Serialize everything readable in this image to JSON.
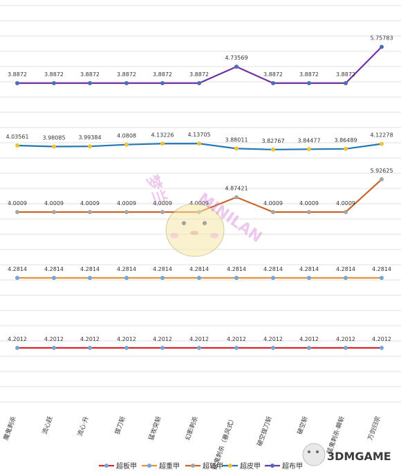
{
  "chart_data": {
    "type": "line",
    "categories": [
      "魔鬼刺杀",
      "流心跃",
      "流心·升",
      "拔刀斩",
      "猛攻突斩",
      "幻影刺杀",
      "猛鬼刺杀（暴风式）",
      "破空拔刀斩",
      "破空斩",
      "猛鬼刺杀·瞬斩",
      "万剑归宗"
    ],
    "series": [
      {
        "name": "超板甲",
        "color": "#d62728",
        "marker": "#6fa8dc",
        "values": [
          4.2012,
          4.2012,
          4.2012,
          4.2012,
          4.2012,
          4.2012,
          4.2012,
          4.2012,
          4.2012,
          4.2012,
          4.2012
        ],
        "labels": [
          "4.2012",
          "4.2012",
          "4.2012",
          "4.2012",
          "4.2012",
          "4.2012",
          "4.2012",
          "4.2012",
          "4.2012",
          "4.2012",
          "4.2012"
        ]
      },
      {
        "name": "超重甲",
        "color": "#e69138",
        "marker": "#6fa8dc",
        "values": [
          4.2814,
          4.2814,
          4.2814,
          4.2814,
          4.2814,
          4.2814,
          4.2814,
          4.2814,
          4.2814,
          4.2814,
          4.2814
        ],
        "labels": [
          "4.2814",
          "4.2814",
          "4.2814",
          "4.2814",
          "4.2814",
          "4.2814",
          "4.2814",
          "4.2814",
          "4.2814",
          "4.2814",
          "4.2814"
        ]
      },
      {
        "name": "超轻甲",
        "color": "#c8642a",
        "marker": "#a5a5a5",
        "values": [
          4.0009,
          4.0009,
          4.0009,
          4.0009,
          4.0009,
          4.0009,
          4.87421,
          4.0009,
          4.0009,
          4.0009,
          5.92625
        ],
        "labels": [
          "4.0009",
          "4.0009",
          "4.0009",
          "4.0009",
          "4.0009",
          "4.0009",
          "4.87421",
          "4.0009",
          "4.0009",
          "4.0009",
          "5.92625"
        ]
      },
      {
        "name": "超皮甲",
        "color": "#1f77b4",
        "marker": "#f1c232",
        "values": [
          4.03561,
          3.98085,
          3.99384,
          4.0808,
          4.13226,
          4.13705,
          3.88011,
          3.82767,
          3.84477,
          3.86489,
          4.12278
        ],
        "labels": [
          "4.03561",
          "3.98085",
          "3.99384",
          "4.0808",
          "4.13226",
          "4.13705",
          "3.88011",
          "3.82767",
          "3.84477",
          "3.86489",
          "4.12278"
        ]
      },
      {
        "name": "超布甲",
        "color": "#7030a0",
        "marker": "#4a6fb5",
        "values": [
          3.8872,
          3.8872,
          3.8872,
          3.8872,
          3.8872,
          3.8872,
          4.73569,
          3.8872,
          3.8872,
          3.8872,
          5.75783
        ],
        "labels": [
          "3.8872",
          "3.8872",
          "3.8872",
          "3.8872",
          "3.8872",
          "3.8872",
          "4.73569",
          "3.8872",
          "3.8872",
          "3.8872",
          "5.75783"
        ]
      }
    ],
    "legend_position": "bottom",
    "grid": true
  },
  "watermark": {
    "brand": "3DMGAME",
    "handwriting": [
      "梦兰",
      "MINILAN"
    ]
  }
}
